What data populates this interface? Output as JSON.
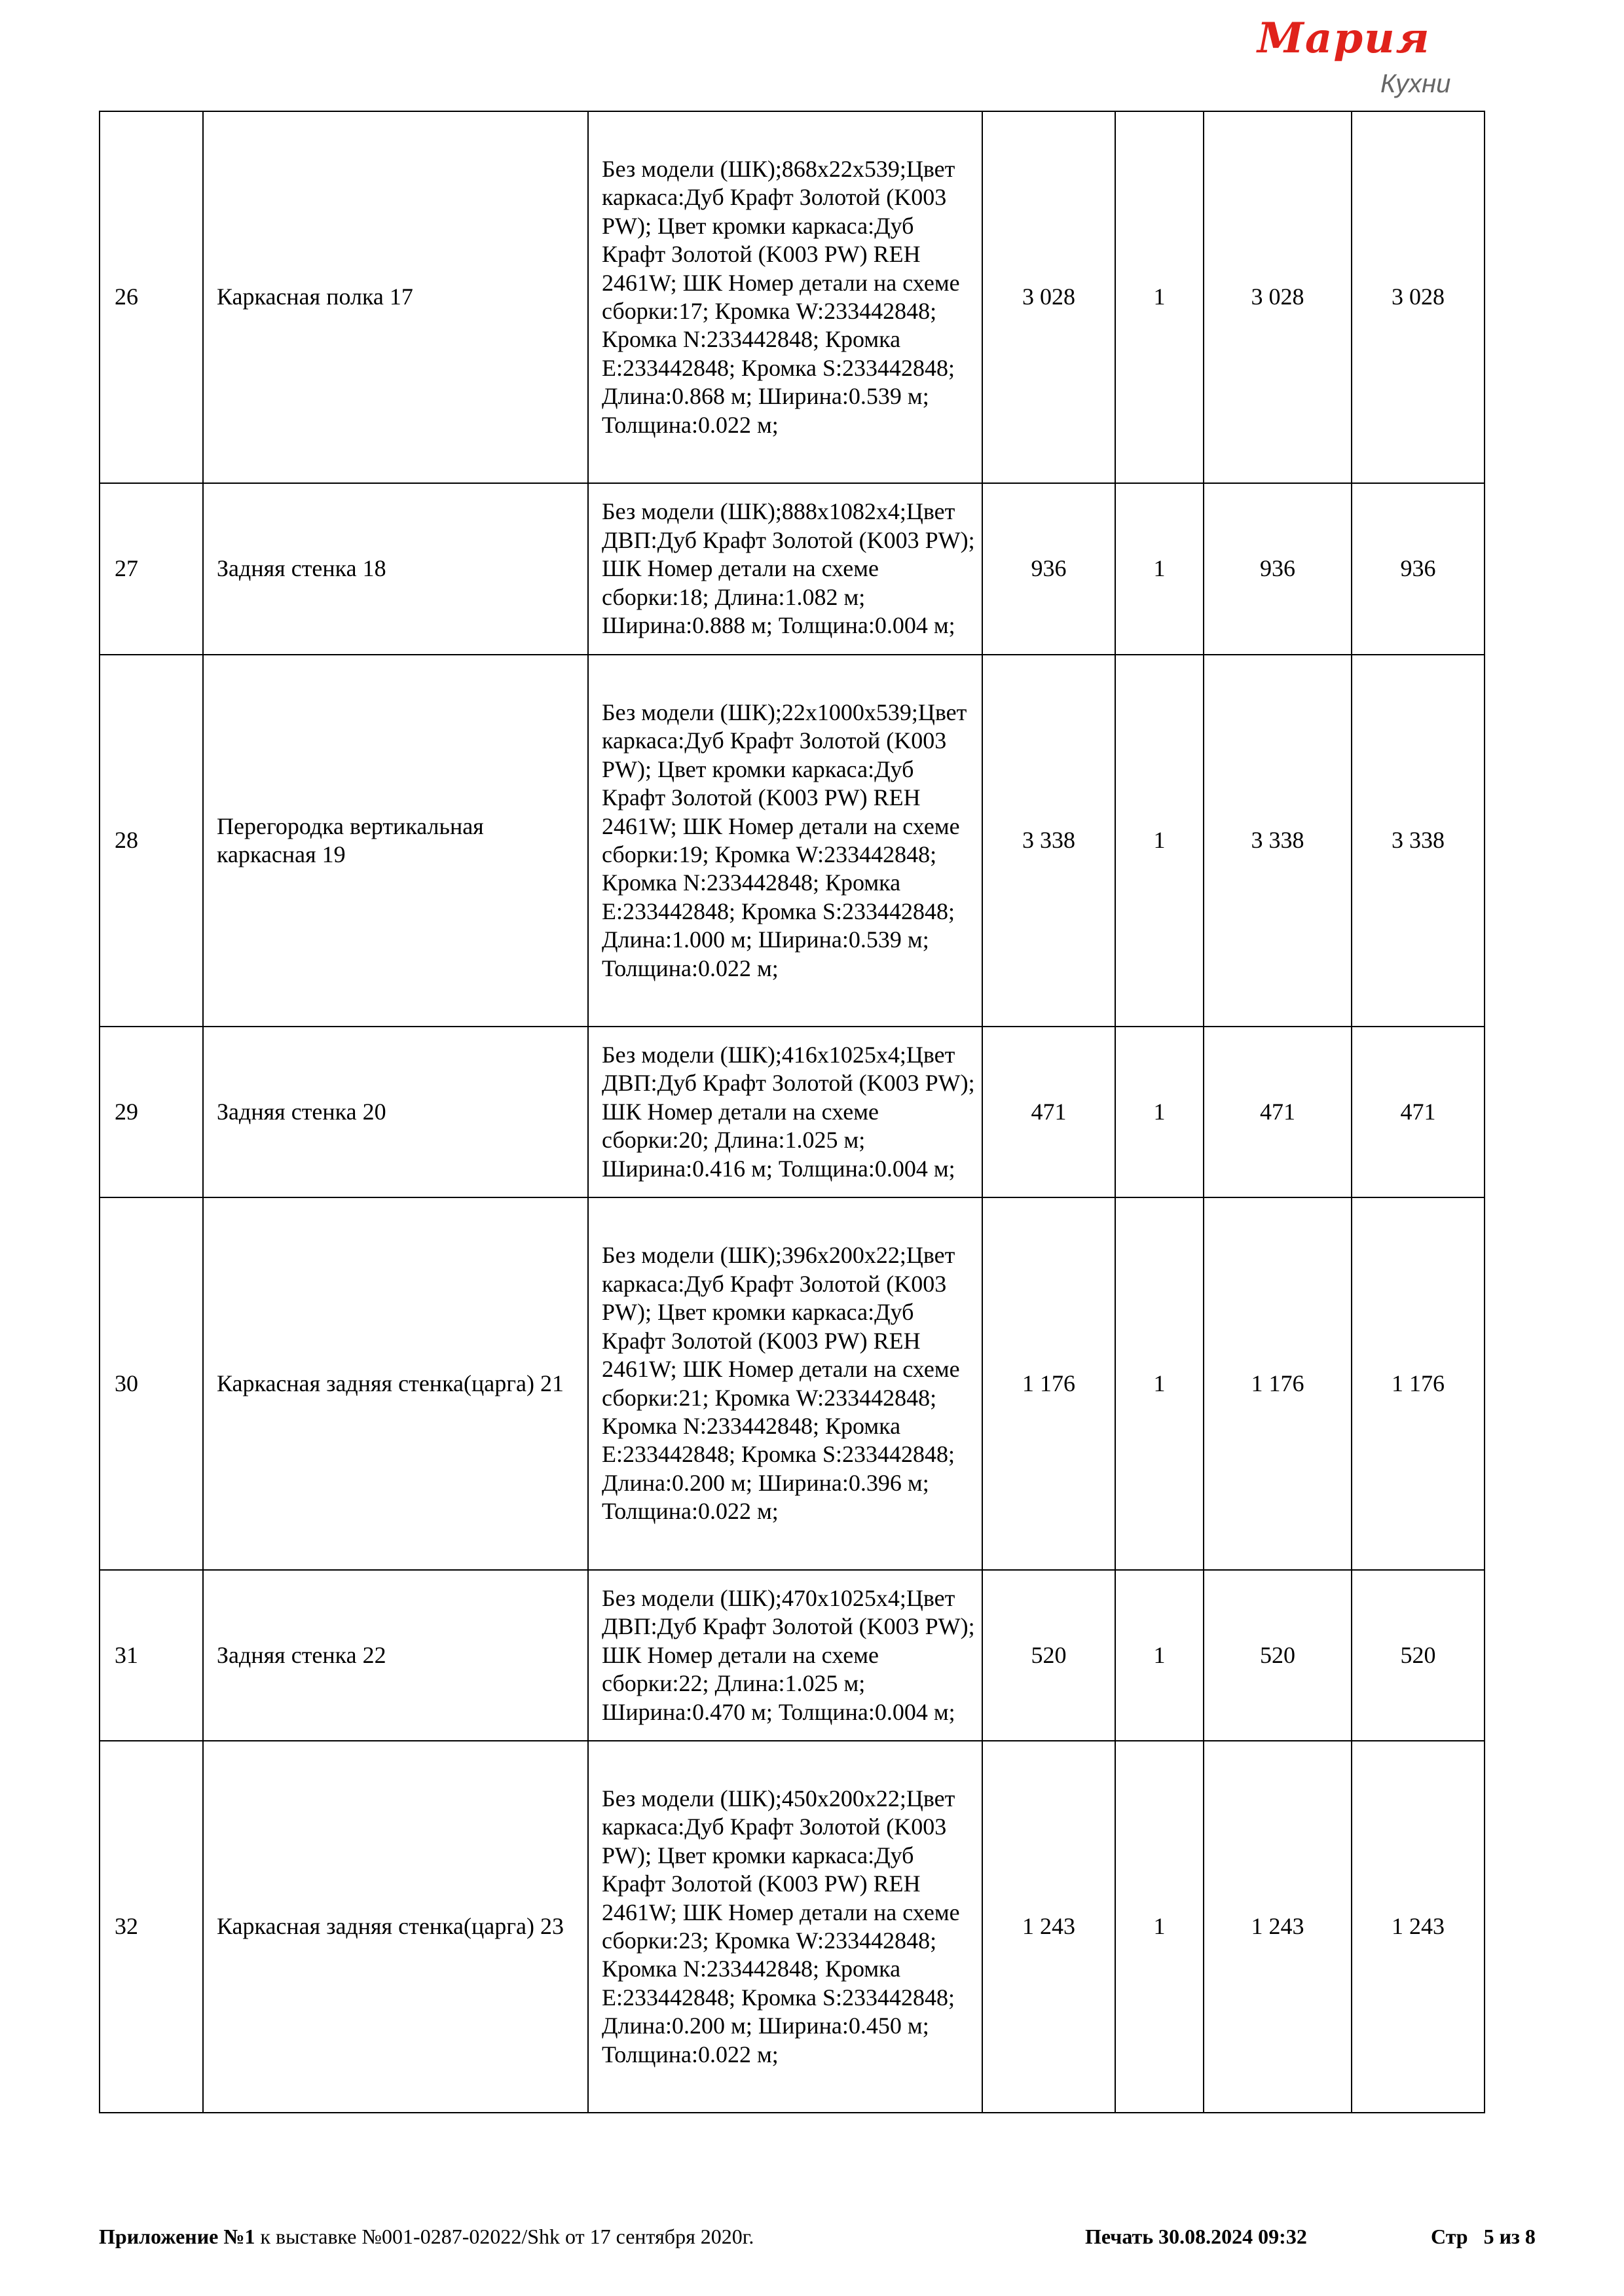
{
  "logo": {
    "brand": "Мария",
    "sub": "Кухни",
    "color": "#e0221b"
  },
  "rows": [
    {
      "n": "26",
      "name": "Каркасная полка 17",
      "desc": "Без модели (ШК);868x22x539;Цвет каркаса:Дуб Крафт Золотой (K003 PW); Цвет кромки каркаса:Дуб Крафт Золотой (K003 PW) REH 2461W; ШК Номер детали на схеме сборки:17; Кромка W:233442848; Кромка N:233442848; Кромка E:233442848; Кромка S:233442848; Длина:0.868 м; Ширина:0.539 м; Толщина:0.022 м;",
      "price": "3 028",
      "qty": "1",
      "sum": "3 028",
      "total": "3 028"
    },
    {
      "n": "27",
      "name": "Задняя стенка 18",
      "desc": "Без модели (ШК);888x1082x4;Цвет ДВП:Дуб Крафт Золотой (K003 PW); ШК Номер детали на схеме сборки:18; Длина:1.082 м; Ширина:0.888 м; Толщина:0.004 м;",
      "price": "936",
      "qty": "1",
      "sum": "936",
      "total": "936"
    },
    {
      "n": "28",
      "name": "Перегородка вертикальная каркасная 19",
      "desc": "Без модели (ШК);22x1000x539;Цвет каркаса:Дуб Крафт Золотой (K003 PW); Цвет кромки каркаса:Дуб Крафт Золотой (K003 PW) REH 2461W; ШК Номер детали на схеме сборки:19; Кромка W:233442848; Кромка N:233442848; Кромка E:233442848; Кромка S:233442848; Длина:1.000 м; Ширина:0.539 м; Толщина:0.022 м;",
      "price": "3 338",
      "qty": "1",
      "sum": "3 338",
      "total": "3 338"
    },
    {
      "n": "29",
      "name": "Задняя стенка 20",
      "desc": "Без модели (ШК);416x1025x4;Цвет ДВП:Дуб Крафт Золотой (K003 PW); ШК Номер детали на схеме сборки:20; Длина:1.025 м; Ширина:0.416 м; Толщина:0.004 м;",
      "price": "471",
      "qty": "1",
      "sum": "471",
      "total": "471"
    },
    {
      "n": "30",
      "name": "Каркасная задняя стенка(царга) 21",
      "desc": "Без модели (ШК);396x200x22;Цвет каркаса:Дуб Крафт Золотой (K003 PW); Цвет кромки каркаса:Дуб Крафт Золотой (K003 PW) REH 2461W; ШК Номер детали на схеме сборки:21; Кромка W:233442848; Кромка N:233442848; Кромка E:233442848; Кромка S:233442848; Длина:0.200 м; Ширина:0.396 м; Толщина:0.022 м;",
      "price": "1 176",
      "qty": "1",
      "sum": "1 176",
      "total": "1 176"
    },
    {
      "n": "31",
      "name": "Задняя стенка 22",
      "desc": "Без модели (ШК);470x1025x4;Цвет ДВП:Дуб Крафт Золотой (K003 PW); ШК Номер детали на схеме сборки:22; Длина:1.025 м; Ширина:0.470 м; Толщина:0.004 м;",
      "price": "520",
      "qty": "1",
      "sum": "520",
      "total": "520"
    },
    {
      "n": "32",
      "name": "Каркасная задняя стенка(царга) 23",
      "desc": "Без модели (ШК);450x200x22;Цвет каркаса:Дуб Крафт Золотой (K003 PW); Цвет кромки каркаса:Дуб Крафт Золотой (K003 PW) REH 2461W; ШК Номер детали на схеме сборки:23; Кромка W:233442848; Кромка N:233442848; Кромка E:233442848; Кромка S:233442848; Длина:0.200 м; Ширина:0.450 м; Толщина:0.022 м;",
      "price": "1 243",
      "qty": "1",
      "sum": "1 243",
      "total": "1 243"
    }
  ],
  "footer": {
    "appendix_bold": "Приложение №1",
    "appendix_rest": " к выставке №001-0287-02022/Shk от 17 сентября 2020г.",
    "print": "Печать 30.08.2024 09:32",
    "page": "Стр   5 из 8"
  }
}
